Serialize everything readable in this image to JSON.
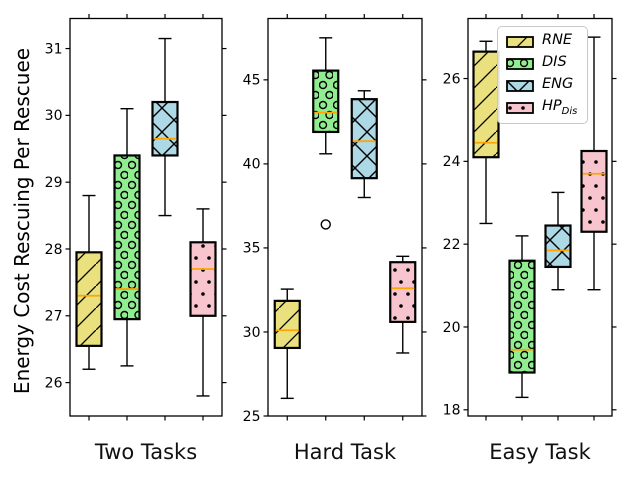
{
  "figure": {
    "ylabel": "Energy Cost Rescuing Per Rescuee",
    "background": "#ffffff"
  },
  "styles": {
    "median_color": "#ffa500",
    "edge_color": "#000000",
    "hatch_color": "#000000",
    "series": {
      "RNE": {
        "fill": "#eae17e",
        "hatch": "diagonal"
      },
      "DIS": {
        "fill": "#90ee90",
        "hatch": "circles"
      },
      "ENG": {
        "fill": "#add8e6",
        "hatch": "cross"
      },
      "HP_Dis": {
        "fill": "#f8c5ce",
        "hatch": "dots"
      }
    }
  },
  "legend": {
    "position": "upper right",
    "items": [
      {
        "series": "RNE",
        "label": "RNE",
        "sub": ""
      },
      {
        "series": "DIS",
        "label": "DIS",
        "sub": ""
      },
      {
        "series": "ENG",
        "label": "ENG",
        "sub": ""
      },
      {
        "series": "HP_Dis",
        "label": "HP",
        "sub": "Dis"
      }
    ]
  },
  "chart_data": [
    {
      "type": "box",
      "title": "Two Tasks",
      "ylabel": "Energy Cost Rescuing Per Rescuee",
      "categories": [
        "RNE",
        "DIS",
        "ENG",
        "HP_Dis"
      ],
      "ylim": [
        25.5,
        31.45
      ],
      "yticks": [
        26,
        27,
        28,
        29,
        30,
        31
      ],
      "grid": false,
      "series": [
        {
          "name": "RNE",
          "whislo": 26.2,
          "q1": 26.55,
          "med": 27.3,
          "q3": 27.95,
          "whishi": 28.8,
          "fliers": []
        },
        {
          "name": "DIS",
          "whislo": 26.25,
          "q1": 26.95,
          "med": 27.4,
          "q3": 29.4,
          "whishi": 30.1,
          "fliers": []
        },
        {
          "name": "ENG",
          "whislo": 28.5,
          "q1": 29.4,
          "med": 29.65,
          "q3": 30.2,
          "whishi": 31.15,
          "fliers": []
        },
        {
          "name": "HP_Dis",
          "whislo": 25.8,
          "q1": 27.0,
          "med": 27.7,
          "q3": 28.1,
          "whishi": 28.6,
          "fliers": []
        }
      ]
    },
    {
      "type": "box",
      "title": "Hard Task",
      "categories": [
        "RNE",
        "DIS",
        "ENG",
        "HP_Dis"
      ],
      "ylim": [
        25.0,
        48.65
      ],
      "yticks": [
        25,
        30,
        35,
        40,
        45
      ],
      "grid": false,
      "series": [
        {
          "name": "RNE",
          "whislo": 26.05,
          "q1": 29.05,
          "med": 30.1,
          "q3": 31.85,
          "whishi": 32.55,
          "fliers": []
        },
        {
          "name": "DIS",
          "whislo": 40.6,
          "q1": 41.9,
          "med": 43.05,
          "q3": 45.55,
          "whishi": 47.5,
          "fliers": [
            36.4
          ]
        },
        {
          "name": "ENG",
          "whislo": 38.0,
          "q1": 39.15,
          "med": 41.35,
          "q3": 43.85,
          "whishi": 44.35,
          "fliers": []
        },
        {
          "name": "HP_Dis",
          "whislo": 28.75,
          "q1": 30.6,
          "med": 32.6,
          "q3": 34.15,
          "whishi": 34.5,
          "fliers": []
        }
      ]
    },
    {
      "type": "box",
      "title": "Easy Task",
      "categories": [
        "RNE",
        "DIS",
        "ENG",
        "HP_Dis"
      ],
      "ylim": [
        17.85,
        27.45
      ],
      "yticks": [
        18,
        20,
        22,
        24,
        26
      ],
      "grid": false,
      "series": [
        {
          "name": "RNE",
          "whislo": 22.5,
          "q1": 24.1,
          "med": 24.45,
          "q3": 26.65,
          "whishi": 26.9,
          "fliers": []
        },
        {
          "name": "DIS",
          "whislo": 18.3,
          "q1": 18.9,
          "med": 19.45,
          "q3": 21.6,
          "whishi": 22.2,
          "fliers": []
        },
        {
          "name": "ENG",
          "whislo": 20.9,
          "q1": 21.45,
          "med": 21.85,
          "q3": 22.45,
          "whishi": 23.25,
          "fliers": []
        },
        {
          "name": "HP_Dis",
          "whislo": 20.9,
          "q1": 22.3,
          "med": 23.7,
          "q3": 24.25,
          "whishi": 27.0,
          "fliers": []
        }
      ]
    }
  ]
}
